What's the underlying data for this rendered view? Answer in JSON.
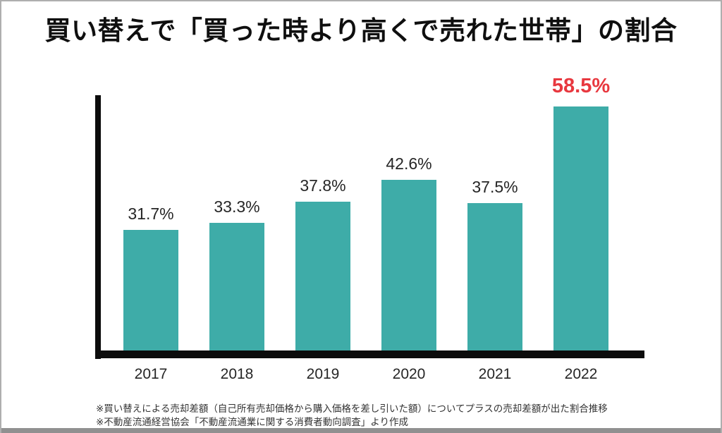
{
  "title": "買い替えで「買った時より高くで売れた世帯」の割合",
  "chart_data": {
    "type": "bar",
    "title": "買い替えで「買った時より高くで売れた世帯」の割合",
    "categories": [
      "2017",
      "2018",
      "2019",
      "2020",
      "2021",
      "2022"
    ],
    "values": [
      31.7,
      33.3,
      37.8,
      42.6,
      37.5,
      58.5
    ],
    "labels": [
      "31.7%",
      "33.3%",
      "37.8%",
      "42.6%",
      "37.5%",
      "58.5%"
    ],
    "xlabel": "",
    "ylabel": "",
    "ylim_estimated": [
      5,
      60
    ],
    "grid": false,
    "legend": false,
    "y_axis_ticks_visible": false,
    "highlight_index": 5,
    "bar_color": "#3eaca8",
    "label_color": "#262626",
    "highlight_label_color": "#e8383f",
    "axis_color": "#0c0c0c"
  },
  "footnotes": [
    "※買い替えによる売却差額（自己所有売却価格から購入価格を差し引いた額）についてプラスの売却差額が出た割合推移",
    "※不動産流通経営協会「不動産流通業に関する消費者動向調査」より作成"
  ]
}
